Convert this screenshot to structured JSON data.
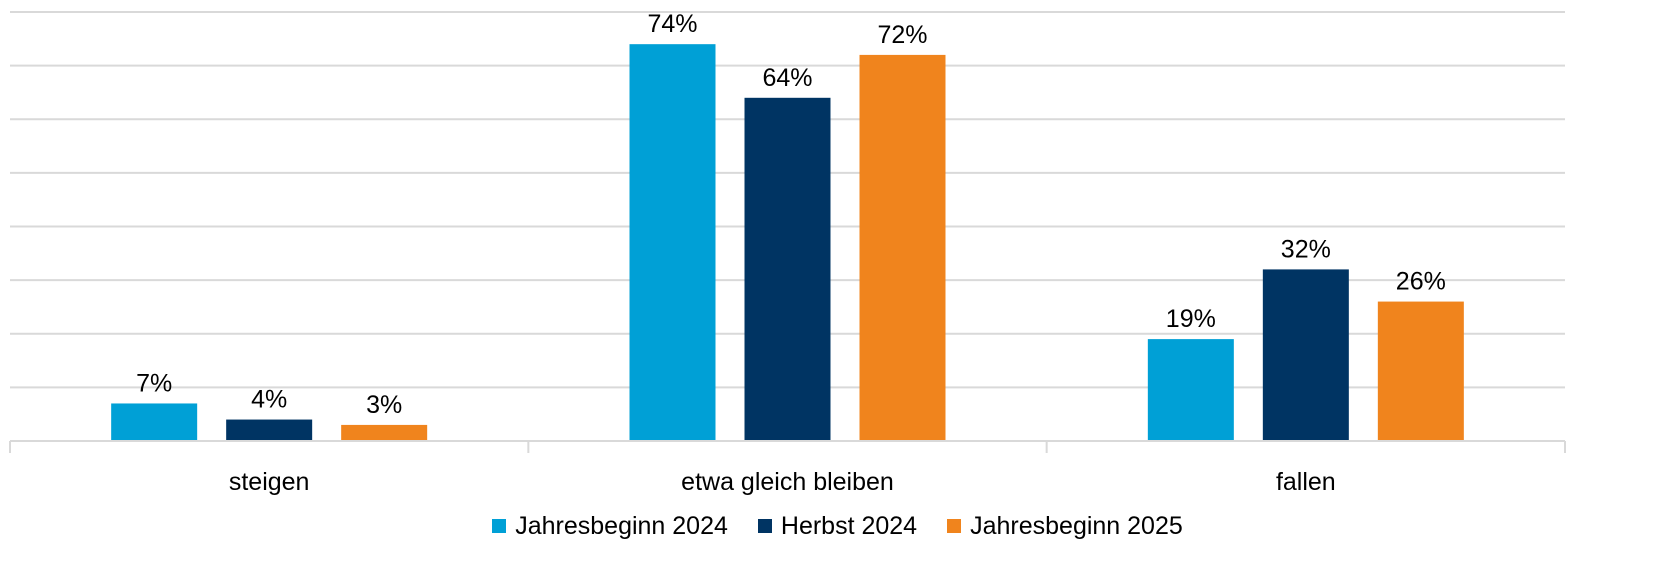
{
  "chart_data": {
    "type": "bar",
    "title": "",
    "xlabel": "",
    "ylabel": "",
    "categories": [
      "steigen",
      "etwa gleich bleiben",
      "fallen"
    ],
    "series": [
      {
        "name": "Jahresbeginn 2024",
        "color": "#00a0d6",
        "values": [
          7,
          74,
          19
        ]
      },
      {
        "name": "Herbst 2024",
        "color": "#003463",
        "values": [
          4,
          64,
          32
        ]
      },
      {
        "name": "Jahresbeginn 2025",
        "color": "#f0841d",
        "values": [
          3,
          72,
          26
        ]
      }
    ],
    "value_suffix": "%",
    "ylim": [
      0,
      80
    ],
    "y_gridline_step": 10,
    "grid": true,
    "legend_position": "bottom",
    "data_labels": true
  }
}
